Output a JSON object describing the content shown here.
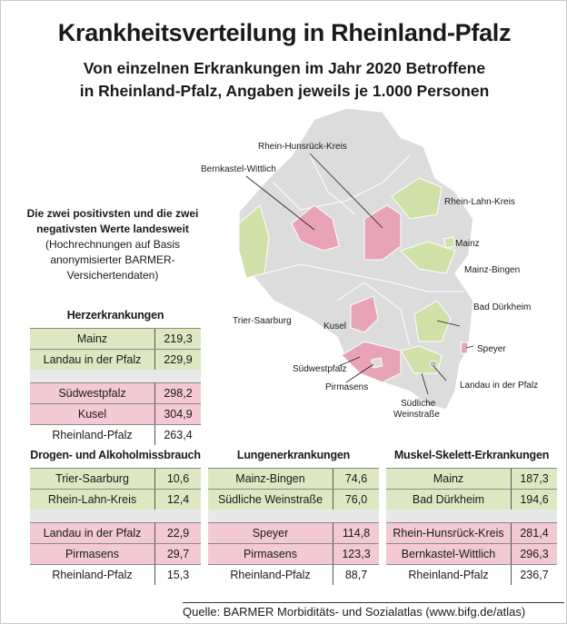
{
  "title": "Krankheitsverteilung in Rheinland-Pfalz",
  "subtitle_line1": "Von einzelnen Erkrankungen im Jahr 2020 Betroffene",
  "subtitle_line2": "in Rheinland-Pfalz, Angaben jeweils je 1.000 Personen",
  "intro": {
    "bold": "Die zwei positivsten und die zwei negativsten Werte landesweit",
    "note": "(Hochrechnungen auf Basis anonymisierter BARMER-Versichertendaten)"
  },
  "colors": {
    "positive": "#dde8c2",
    "negative": "#f3c9d3",
    "map_positive": "#cfe0a8",
    "map_negative": "#e8a4b6",
    "map_base": "#dcdcdc"
  },
  "map_labels": {
    "rhk": "Rhein-Hunsrück-Kreis",
    "bw": "Bernkastel-Wittlich",
    "rlk": "Rhein-Lahn-Kreis",
    "mainz": "Mainz",
    "mb": "Mainz-Bingen",
    "bd": "Bad Dürkheim",
    "ts": "Trier-Saarburg",
    "kusel": "Kusel",
    "speyer": "Speyer",
    "swp": "Südwestpfalz",
    "pirm": "Pirmasens",
    "landau": "Landau in der Pfalz",
    "sw1": "Südliche",
    "sw2": "Weinstraße"
  },
  "tables": [
    {
      "title": "Herzerkrankungen",
      "best": [
        [
          "Mainz",
          "219,3"
        ],
        [
          "Landau in der Pfalz",
          "229,9"
        ]
      ],
      "worst": [
        [
          "Südwestpfalz",
          "298,2"
        ],
        [
          "Kusel",
          "304,9"
        ]
      ],
      "total": [
        "Rheinland-Pfalz",
        "263,4"
      ]
    },
    {
      "title": "Drogen- und Alkoholmissbrauch",
      "best": [
        [
          "Trier-Saarburg",
          "10,6"
        ],
        [
          "Rhein-Lahn-Kreis",
          "12,4"
        ]
      ],
      "worst": [
        [
          "Landau in der Pfalz",
          "22,9"
        ],
        [
          "Pirmasens",
          "29,7"
        ]
      ],
      "total": [
        "Rheinland-Pfalz",
        "15,3"
      ]
    },
    {
      "title": "Lungenerkrankungen",
      "best": [
        [
          "Mainz-Bingen",
          "74,6"
        ],
        [
          "Südliche Weinstraße",
          "76,0"
        ]
      ],
      "worst": [
        [
          "Speyer",
          "114,8"
        ],
        [
          "Pirmasens",
          "123,3"
        ]
      ],
      "total": [
        "Rheinland-Pfalz",
        "88,7"
      ]
    },
    {
      "title": "Muskel-Skelett-Erkrankungen",
      "best": [
        [
          "Mainz",
          "187,3"
        ],
        [
          "Bad Dürkheim",
          "194,6"
        ]
      ],
      "worst": [
        [
          "Rhein-Hunsrück-Kreis",
          "281,4"
        ],
        [
          "Bernkastel-Wittlich",
          "296,3"
        ]
      ],
      "total": [
        "Rheinland-Pfalz",
        "236,7"
      ]
    }
  ],
  "source": "Quelle: BARMER Morbiditäts- und Sozialatlas (www.bifg.de/atlas)"
}
